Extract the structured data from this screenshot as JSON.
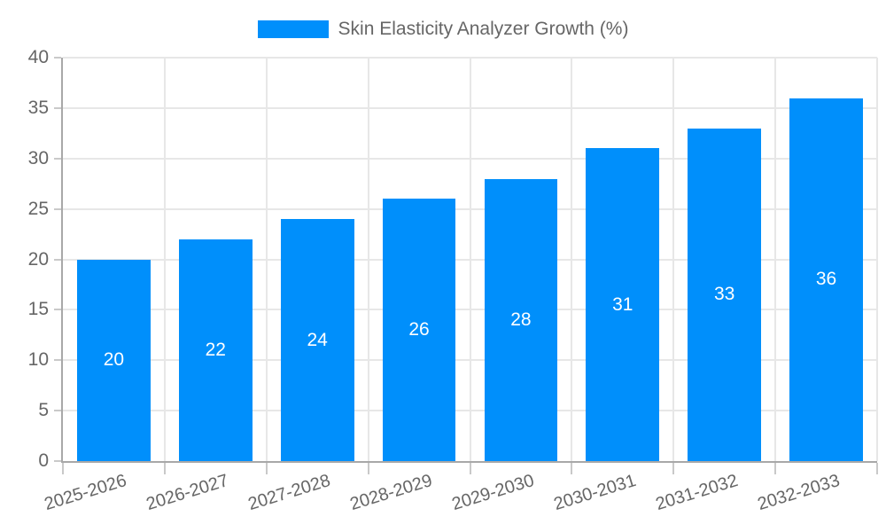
{
  "legend": {
    "label": "Skin Elasticity Analyzer Growth (%)"
  },
  "chart_data": {
    "type": "bar",
    "title": "Skin Elasticity Analyzer Growth (%)",
    "categories": [
      "2025-2026",
      "2026-2027",
      "2027-2028",
      "2028-2029",
      "2029-2030",
      "2030-2031",
      "2031-2032",
      "2032-2033"
    ],
    "values": [
      20,
      22,
      24,
      26,
      28,
      31,
      33,
      36
    ],
    "bar_value_labels": [
      "20",
      "22",
      "24",
      "26",
      "28",
      "31",
      "33",
      "36"
    ],
    "y_tick_labels": [
      "0",
      "5",
      "10",
      "15",
      "20",
      "25",
      "30",
      "35",
      "40"
    ],
    "xlabel": "",
    "ylabel": "",
    "ylim": [
      0,
      40
    ],
    "ytick_step": 5,
    "grid": true,
    "legend_position": "top-center",
    "x_label_rotation_deg": -17,
    "bar_value_label_position": "inside-center",
    "colors": {
      "bar": "#008FFB",
      "axis": "#a8a8a8",
      "grid": "#e7e7e7",
      "tick": "#c9c9c9",
      "text": "#666666",
      "bar_label": "#ffffff"
    }
  }
}
